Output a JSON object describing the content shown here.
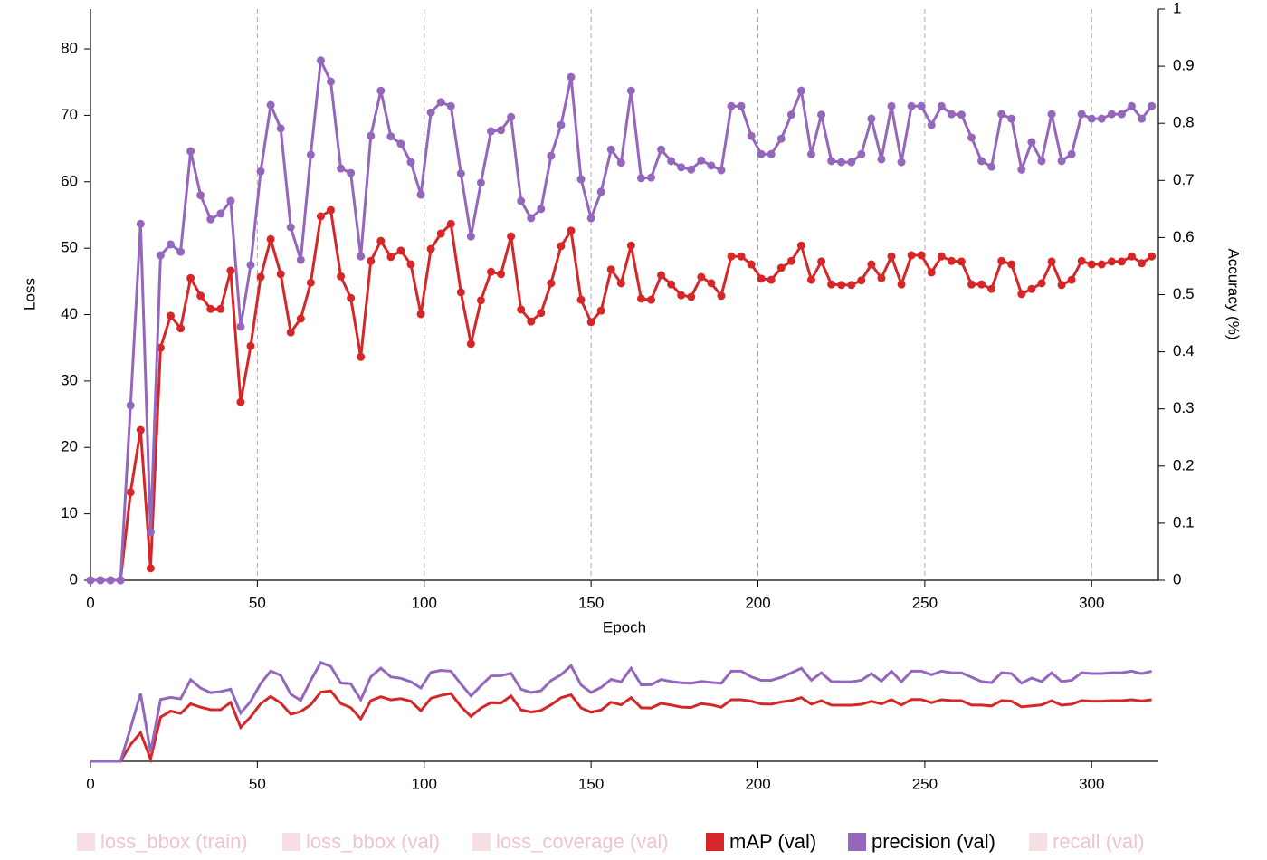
{
  "chart_data": {
    "type": "line",
    "xlabel": "Epoch",
    "ylabel": "Loss",
    "y2label": "Accuracy (%)",
    "x": [
      0,
      3,
      6,
      9,
      12,
      15,
      18,
      21,
      24,
      27,
      30,
      33,
      36,
      39,
      42,
      45,
      48,
      51,
      54,
      57,
      60,
      63,
      66,
      69,
      72,
      75,
      78,
      81,
      84,
      87,
      90,
      93,
      96,
      99,
      102,
      105,
      108,
      111,
      114,
      117,
      120,
      123,
      126,
      129,
      132,
      135,
      138,
      141,
      144,
      147,
      150,
      153,
      156,
      159,
      162,
      165,
      168,
      171,
      174,
      177,
      180,
      183,
      186,
      189,
      192,
      195,
      198,
      201,
      204,
      207,
      210,
      213,
      216,
      219,
      222,
      225,
      228,
      231,
      234,
      237,
      240,
      243,
      246,
      249,
      252,
      255,
      258,
      261,
      264,
      267,
      270,
      273,
      276,
      279,
      282,
      285,
      288,
      291,
      294,
      297,
      300,
      303,
      306,
      309,
      312,
      315,
      318
    ],
    "xlim": [
      0,
      320
    ],
    "xticks": [
      0,
      50,
      100,
      150,
      200,
      250,
      300
    ],
    "ylim": [
      0,
      86
    ],
    "yticks": [
      0,
      10,
      20,
      30,
      40,
      50,
      60,
      70,
      80
    ],
    "y2lim": [
      0,
      1
    ],
    "y2ticks": [
      0,
      0.1,
      0.2,
      0.3,
      0.4,
      0.5,
      0.6,
      0.7,
      0.8,
      0.9,
      1
    ],
    "grid": true,
    "series": [
      {
        "name": "loss_bbox (train)",
        "hidden": true,
        "color": "#f3c9d1"
      },
      {
        "name": "loss_bbox (val)",
        "hidden": true,
        "color": "#f3c9d1"
      },
      {
        "name": "loss_coverage (val)",
        "hidden": true,
        "color": "#f3c9d1"
      },
      {
        "name": "mAP (val)",
        "color": "#d62728",
        "axis": "y2",
        "values": [
          0,
          0,
          0,
          0,
          0.154,
          0.263,
          0.021,
          0.407,
          0.463,
          0.441,
          0.529,
          0.498,
          0.475,
          0.475,
          0.542,
          0.312,
          0.41,
          0.531,
          0.597,
          0.536,
          0.434,
          0.458,
          0.521,
          0.637,
          0.648,
          0.532,
          0.494,
          0.391,
          0.559,
          0.594,
          0.566,
          0.577,
          0.553,
          0.466,
          0.58,
          0.607,
          0.624,
          0.504,
          0.414,
          0.49,
          0.54,
          0.536,
          0.602,
          0.474,
          0.453,
          0.468,
          0.52,
          0.585,
          0.612,
          0.491,
          0.452,
          0.472,
          0.544,
          0.52,
          0.586,
          0.493,
          0.491,
          0.534,
          0.518,
          0.499,
          0.496,
          0.531,
          0.52,
          0.498,
          0.567,
          0.567,
          0.553,
          0.528,
          0.526,
          0.547,
          0.559,
          0.586,
          0.526,
          0.558,
          0.518,
          0.517,
          0.517,
          0.525,
          0.553,
          0.529,
          0.567,
          0.518,
          0.569,
          0.569,
          0.539,
          0.567,
          0.559,
          0.558,
          0.518,
          0.518,
          0.51,
          0.559,
          0.553,
          0.501,
          0.51,
          0.52,
          0.558,
          0.517,
          0.526,
          0.559,
          0.553,
          0.553,
          0.558,
          0.558,
          0.567,
          0.555,
          0.567
        ]
      },
      {
        "name": "precision (val)",
        "color": "#9467bd",
        "axis": "y2",
        "values": [
          0,
          0,
          0,
          0,
          0.306,
          0.624,
          0.084,
          0.569,
          0.588,
          0.575,
          0.751,
          0.674,
          0.632,
          0.642,
          0.664,
          0.444,
          0.552,
          0.716,
          0.832,
          0.791,
          0.618,
          0.561,
          0.745,
          0.91,
          0.873,
          0.721,
          0.713,
          0.567,
          0.778,
          0.857,
          0.777,
          0.764,
          0.732,
          0.675,
          0.819,
          0.837,
          0.83,
          0.712,
          0.602,
          0.696,
          0.786,
          0.788,
          0.811,
          0.664,
          0.634,
          0.65,
          0.743,
          0.797,
          0.881,
          0.702,
          0.634,
          0.68,
          0.754,
          0.731,
          0.857,
          0.704,
          0.705,
          0.754,
          0.734,
          0.723,
          0.719,
          0.735,
          0.726,
          0.718,
          0.83,
          0.83,
          0.778,
          0.746,
          0.746,
          0.773,
          0.815,
          0.857,
          0.746,
          0.815,
          0.734,
          0.732,
          0.732,
          0.746,
          0.808,
          0.737,
          0.83,
          0.732,
          0.83,
          0.83,
          0.797,
          0.83,
          0.816,
          0.815,
          0.775,
          0.734,
          0.724,
          0.816,
          0.808,
          0.719,
          0.767,
          0.734,
          0.816,
          0.734,
          0.746,
          0.816,
          0.808,
          0.808,
          0.816,
          0.816,
          0.83,
          0.808,
          0.83
        ]
      },
      {
        "name": "recall (val)",
        "hidden": true,
        "color": "#f3c9d1"
      }
    ]
  }
}
